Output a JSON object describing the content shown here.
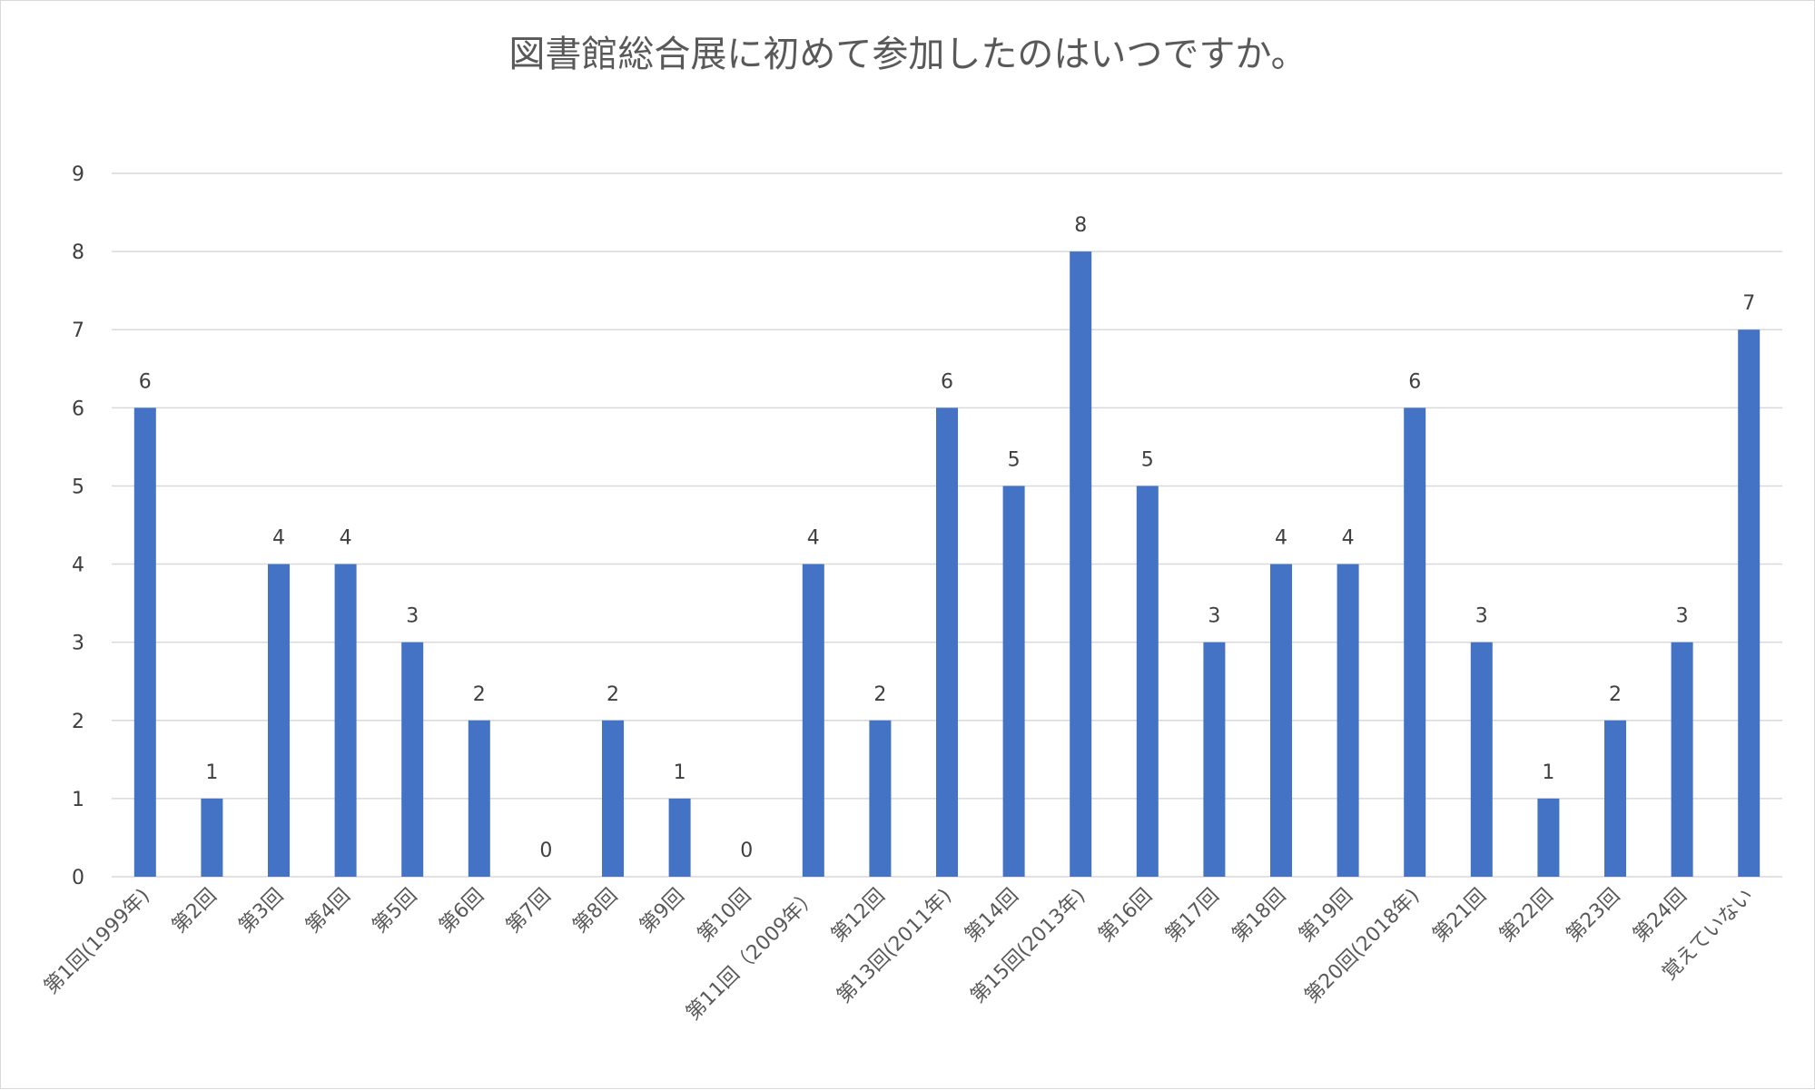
{
  "chart_data": {
    "type": "bar",
    "title": "図書館総合展に初めて参加したのはいつですか。",
    "xlabel": "",
    "ylabel": "",
    "ylim": [
      0,
      9
    ],
    "yticks": [
      0,
      1,
      2,
      3,
      4,
      5,
      6,
      7,
      8,
      9
    ],
    "grid": true,
    "legend": "none",
    "colors": {
      "bar": "#4472c4",
      "grid": "#d9d9d9",
      "text": "#595959"
    },
    "categories": [
      "第1回(1999年)",
      "第2回",
      "第3回",
      "第4回",
      "第5回",
      "第6回",
      "第7回",
      "第8回",
      "第9回",
      "第10回",
      "第11回（2009年）",
      "第12回",
      "第13回(2011年)",
      "第14回",
      "第15回(2013年)",
      "第16回",
      "第17回",
      "第18回",
      "第19回",
      "第20回(2018年)",
      "第21回",
      "第22回",
      "第23回",
      "第24回",
      "覚えていない"
    ],
    "values": [
      6,
      1,
      4,
      4,
      3,
      2,
      0,
      2,
      1,
      0,
      4,
      2,
      6,
      5,
      8,
      5,
      3,
      4,
      4,
      6,
      3,
      1,
      2,
      3,
      7
    ]
  }
}
